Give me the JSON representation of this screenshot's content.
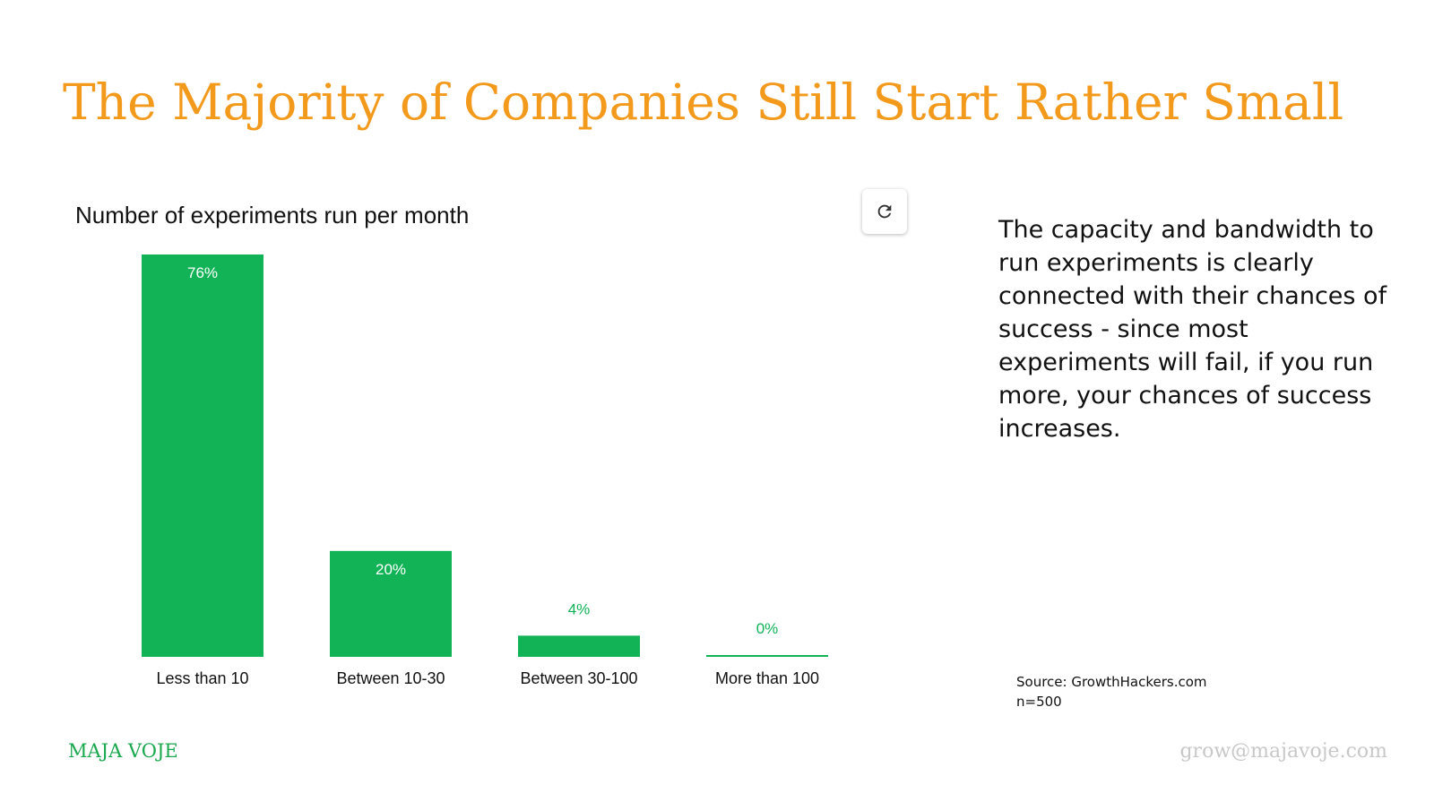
{
  "slide": {
    "title": "The Majority of Companies Still Start Rather Small",
    "description": "The capacity and bandwidth to run experiments is clearly connected with their chances of success - since most experiments will fail, if you run more, your chances of success increases.",
    "source_line": "Source: GrowthHackers.com",
    "sample_line": "n=500",
    "brand": "MAJA VOJE",
    "email": "grow@majavoje.com",
    "refresh_icon": "refresh-icon"
  },
  "colors": {
    "title": "#f39a1d",
    "bar": "#12b356",
    "brand": "#1aa84f",
    "email": "#c8c8c8"
  },
  "chart_data": {
    "type": "bar",
    "title": "Number of experiments run per month",
    "categories": [
      "Less than 10",
      "Between 10-30",
      "Between 30-100",
      "More than 100"
    ],
    "values": [
      76,
      20,
      4,
      0
    ],
    "data_labels": [
      "76%",
      "20%",
      "4%",
      "0%"
    ],
    "xlabel": "",
    "ylabel": "",
    "ylim": [
      0,
      76
    ],
    "grid": false,
    "legend": "none"
  }
}
